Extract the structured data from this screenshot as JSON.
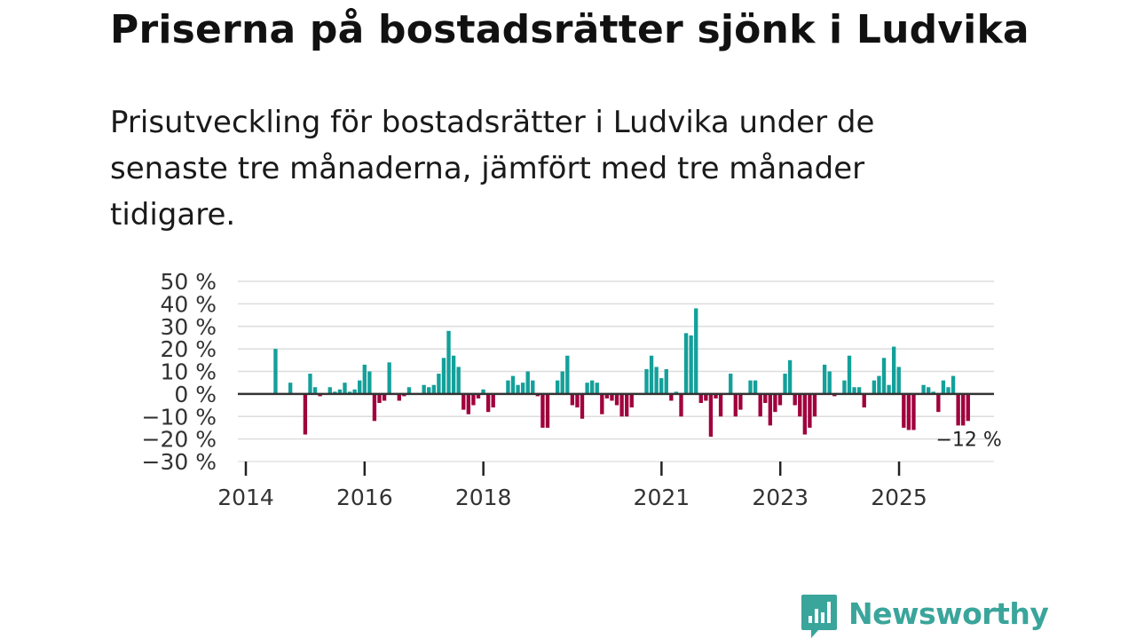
{
  "header": {
    "title": "Priserna på bostadsrätter sjönk i Ludvika",
    "subtitle": "Prisutveckling för bostadsrätter i Ludvika under de senaste tre månaderna, jämfört med tre månader tidigare."
  },
  "chart_data": {
    "type": "bar",
    "title": "Priserna på bostadsrätter sjönk i Ludvika",
    "xlabel": "",
    "ylabel": "",
    "ylim": [
      -30,
      50
    ],
    "yticks": [
      50,
      40,
      30,
      20,
      10,
      0,
      -10,
      -20,
      -30
    ],
    "ytick_labels": [
      "50 %",
      "40 %",
      "30 %",
      "20 %",
      "10 %",
      "0 %",
      "−10 %",
      "−20 %",
      "−30 %"
    ],
    "xticks": [
      2014,
      2016,
      2018,
      2021,
      2023,
      2025
    ],
    "xlim": [
      2014,
      2026.3
    ],
    "grid": true,
    "positive_color": "#14a09a",
    "negative_color": "#a0003c",
    "last_label": "−12 %",
    "start": 2014.5,
    "step": 0.0833,
    "values": [
      20,
      0,
      0,
      5,
      0,
      0,
      -18,
      9,
      3,
      -1,
      0,
      3,
      1,
      2,
      5,
      1,
      2,
      6,
      13,
      10,
      -12,
      -4,
      -3,
      14,
      0,
      -3,
      -1,
      3,
      0,
      0,
      4,
      3,
      4,
      9,
      16,
      28,
      17,
      12,
      -7,
      -9,
      -5,
      -2,
      2,
      -8,
      -6,
      0,
      0,
      6,
      8,
      4,
      5,
      10,
      6,
      -1,
      -15,
      -15,
      0,
      6,
      10,
      17,
      -5,
      -6,
      -11,
      5,
      6,
      5,
      -9,
      -2,
      -3,
      -5,
      -10,
      -10,
      -6,
      0,
      0,
      11,
      17,
      12,
      7,
      11,
      -3,
      1,
      -10,
      27,
      26,
      38,
      -4,
      -3,
      -19,
      -2,
      -10,
      0,
      9,
      -10,
      -7,
      0,
      6,
      6,
      -10,
      -4,
      -14,
      -8,
      -5,
      9,
      15,
      -5,
      -10,
      -18,
      -15,
      -10,
      0,
      13,
      10,
      -1,
      0,
      6,
      17,
      3,
      3,
      -6,
      0,
      6,
      8,
      16,
      4,
      21,
      12,
      -15,
      -16,
      -16,
      0,
      4,
      3,
      1,
      -8,
      6,
      3,
      8,
      -14,
      -14,
      -12
    ]
  },
  "branding": {
    "logo_text": "Newsworthy",
    "logo_icon": "bar-chart-speech-bubble-icon"
  }
}
